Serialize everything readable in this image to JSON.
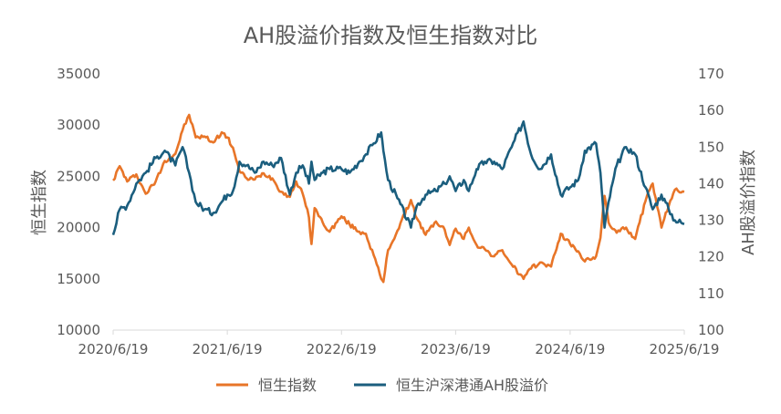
{
  "chart_data": {
    "type": "line",
    "title": "AH股溢价指数及恒生指数对比",
    "ylabel_left": "恒生指数",
    "ylabel_right": "AH股溢价指数",
    "xlim": [
      "2020-06-19",
      "2025-06-19"
    ],
    "ylim_left": [
      10000,
      35000
    ],
    "ylim_right": [
      100,
      170
    ],
    "x_ticks": [
      "2020/6/19",
      "2021/6/19",
      "2022/6/19",
      "2023/6/19",
      "2024/6/19",
      "2025/6/19"
    ],
    "y_ticks_left": [
      "10000",
      "15000",
      "20000",
      "25000",
      "30000",
      "35000"
    ],
    "y_ticks_right": [
      "100",
      "110",
      "120",
      "130",
      "140",
      "150",
      "160",
      "170"
    ],
    "grid": false,
    "legend_position": "bottom",
    "series": [
      {
        "name": "恒生指数",
        "axis": "left",
        "color": "#E87528",
        "points": [
          [
            "2020-06-19",
            24600
          ],
          [
            "2020-07-10",
            26000
          ],
          [
            "2020-08-03",
            24500
          ],
          [
            "2020-09-01",
            25200
          ],
          [
            "2020-10-01",
            23300
          ],
          [
            "2020-11-02",
            24500
          ],
          [
            "2020-12-01",
            26500
          ],
          [
            "2021-01-04",
            27200
          ],
          [
            "2021-01-27",
            29500
          ],
          [
            "2021-02-17",
            31000
          ],
          [
            "2021-03-10",
            28800
          ],
          [
            "2021-04-07",
            28900
          ],
          [
            "2021-05-05",
            28300
          ],
          [
            "2021-06-01",
            29300
          ],
          [
            "2021-06-19",
            28800
          ],
          [
            "2021-07-07",
            27800
          ],
          [
            "2021-07-28",
            25500
          ],
          [
            "2021-08-20",
            24800
          ],
          [
            "2021-09-15",
            24700
          ],
          [
            "2021-10-13",
            25300
          ],
          [
            "2021-11-10",
            24800
          ],
          [
            "2021-12-08",
            23500
          ],
          [
            "2022-01-05",
            23000
          ],
          [
            "2022-01-25",
            24500
          ],
          [
            "2022-02-15",
            23300
          ],
          [
            "2022-03-07",
            21000
          ],
          [
            "2022-03-15",
            18400
          ],
          [
            "2022-03-25",
            21900
          ],
          [
            "2022-04-20",
            20500
          ],
          [
            "2022-05-12",
            19600
          ],
          [
            "2022-06-19",
            21100
          ],
          [
            "2022-07-15",
            20300
          ],
          [
            "2022-08-15",
            19600
          ],
          [
            "2022-09-05",
            19400
          ],
          [
            "2022-09-30",
            17300
          ],
          [
            "2022-10-24",
            15000
          ],
          [
            "2022-10-31",
            14700
          ],
          [
            "2022-11-15",
            17800
          ],
          [
            "2022-12-15",
            19700
          ],
          [
            "2023-01-27",
            22700
          ],
          [
            "2023-02-15",
            20900
          ],
          [
            "2023-03-15",
            19300
          ],
          [
            "2023-04-17",
            20600
          ],
          [
            "2023-05-15",
            19800
          ],
          [
            "2023-05-31",
            18300
          ],
          [
            "2023-06-19",
            19900
          ],
          [
            "2023-07-15",
            18900
          ],
          [
            "2023-07-31",
            20000
          ],
          [
            "2023-08-25",
            18300
          ],
          [
            "2023-09-20",
            17900
          ],
          [
            "2023-10-20",
            17200
          ],
          [
            "2023-11-15",
            17800
          ],
          [
            "2023-12-15",
            16400
          ],
          [
            "2024-01-22",
            15000
          ],
          [
            "2024-02-15",
            16000
          ],
          [
            "2024-03-15",
            16600
          ],
          [
            "2024-04-19",
            16200
          ],
          [
            "2024-05-20",
            19400
          ],
          [
            "2024-06-19",
            18400
          ],
          [
            "2024-07-15",
            17700
          ],
          [
            "2024-08-05",
            16700
          ],
          [
            "2024-09-10",
            17200
          ],
          [
            "2024-09-24",
            19000
          ],
          [
            "2024-10-07",
            23100
          ],
          [
            "2024-10-20",
            20500
          ],
          [
            "2024-11-15",
            19500
          ],
          [
            "2024-12-15",
            20000
          ],
          [
            "2025-01-13",
            18900
          ],
          [
            "2025-02-15",
            22600
          ],
          [
            "2025-03-10",
            24300
          ],
          [
            "2025-04-07",
            20000
          ],
          [
            "2025-04-30",
            22100
          ],
          [
            "2025-05-20",
            23700
          ],
          [
            "2025-06-19",
            23500
          ]
        ]
      },
      {
        "name": "恒生沪深港通AH股溢价",
        "axis": "right",
        "color": "#1B5E7E",
        "points": [
          [
            "2020-06-19",
            126
          ],
          [
            "2020-07-10",
            133
          ],
          [
            "2020-08-03",
            134
          ],
          [
            "2020-09-01",
            140
          ],
          [
            "2020-10-01",
            143
          ],
          [
            "2020-11-02",
            147
          ],
          [
            "2020-12-01",
            149
          ],
          [
            "2021-01-04",
            145
          ],
          [
            "2021-01-27",
            150
          ],
          [
            "2021-02-17",
            143
          ],
          [
            "2021-03-10",
            135
          ],
          [
            "2021-04-07",
            133
          ],
          [
            "2021-05-05",
            132
          ],
          [
            "2021-06-01",
            135
          ],
          [
            "2021-06-19",
            137
          ],
          [
            "2021-07-07",
            138
          ],
          [
            "2021-07-28",
            146
          ],
          [
            "2021-08-20",
            145
          ],
          [
            "2021-09-15",
            143
          ],
          [
            "2021-10-13",
            146
          ],
          [
            "2021-11-10",
            145
          ],
          [
            "2021-12-08",
            147
          ],
          [
            "2022-01-05",
            137
          ],
          [
            "2022-01-25",
            143
          ],
          [
            "2022-02-15",
            145
          ],
          [
            "2022-03-07",
            140
          ],
          [
            "2022-03-15",
            146
          ],
          [
            "2022-03-25",
            141
          ],
          [
            "2022-04-20",
            143
          ],
          [
            "2022-05-12",
            144
          ],
          [
            "2022-06-19",
            144
          ],
          [
            "2022-07-15",
            143
          ],
          [
            "2022-08-15",
            146
          ],
          [
            "2022-09-05",
            148
          ],
          [
            "2022-09-30",
            151
          ],
          [
            "2022-10-24",
            154
          ],
          [
            "2022-10-31",
            149
          ],
          [
            "2022-11-15",
            141
          ],
          [
            "2022-12-15",
            136
          ],
          [
            "2023-01-27",
            128
          ],
          [
            "2023-02-15",
            134
          ],
          [
            "2023-03-15",
            137
          ],
          [
            "2023-04-17",
            138
          ],
          [
            "2023-05-15",
            140
          ],
          [
            "2023-05-31",
            142
          ],
          [
            "2023-06-19",
            138
          ],
          [
            "2023-07-15",
            141
          ],
          [
            "2023-07-31",
            138
          ],
          [
            "2023-08-25",
            144
          ],
          [
            "2023-09-20",
            146
          ],
          [
            "2023-10-20",
            146
          ],
          [
            "2023-11-15",
            144
          ],
          [
            "2023-12-15",
            150
          ],
          [
            "2024-01-22",
            157
          ],
          [
            "2024-02-15",
            148
          ],
          [
            "2024-03-15",
            144
          ],
          [
            "2024-04-19",
            148
          ],
          [
            "2024-05-20",
            137
          ],
          [
            "2024-06-19",
            139
          ],
          [
            "2024-07-15",
            141
          ],
          [
            "2024-08-05",
            149
          ],
          [
            "2024-09-10",
            151
          ],
          [
            "2024-09-24",
            143
          ],
          [
            "2024-10-07",
            128
          ],
          [
            "2024-10-20",
            135
          ],
          [
            "2024-11-15",
            145
          ],
          [
            "2024-12-15",
            150
          ],
          [
            "2025-01-13",
            148
          ],
          [
            "2025-02-15",
            139
          ],
          [
            "2025-03-10",
            133
          ],
          [
            "2025-04-07",
            137
          ],
          [
            "2025-04-30",
            133
          ],
          [
            "2025-05-20",
            130
          ],
          [
            "2025-06-19",
            129
          ]
        ]
      }
    ]
  }
}
